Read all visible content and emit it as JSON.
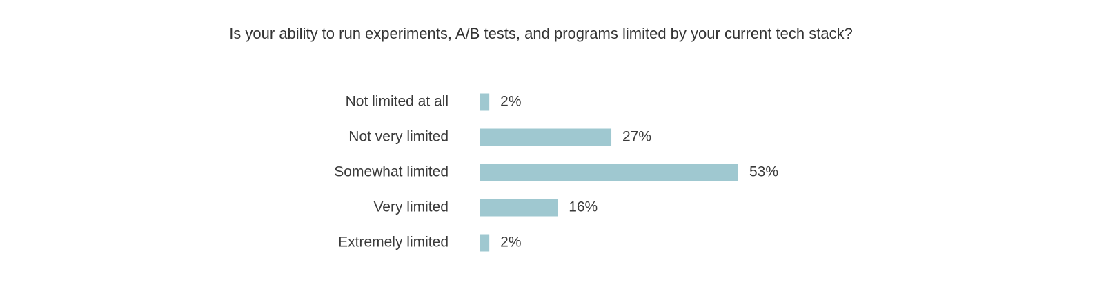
{
  "chart_data": {
    "type": "bar",
    "orientation": "horizontal",
    "title": "Is your ability to run experiments, A/B tests, and programs limited by your current tech stack?",
    "categories": [
      "Not limited at all",
      "Not very limited",
      "Somewhat limited",
      "Very limited",
      "Extremely limited"
    ],
    "values": [
      2,
      27,
      53,
      16,
      2
    ],
    "value_labels": [
      "2%",
      "27%",
      "53%",
      "16%",
      "2%"
    ],
    "color": "#9fc8d0"
  }
}
